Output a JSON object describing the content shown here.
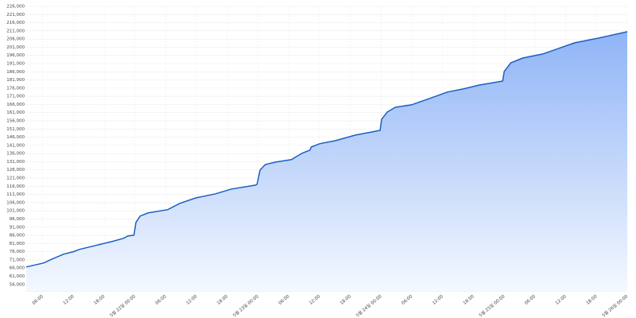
{
  "chart_data": {
    "type": "area",
    "x": [
      2.8,
      6.2,
      7.8,
      10.1,
      12,
      13.2,
      16.3,
      19.5,
      21.8,
      22.6,
      23.8,
      24.2,
      25,
      26.5,
      30.4,
      32.7,
      35.9,
      39.7,
      42.8,
      47.5,
      47.8,
      48.4,
      49.4,
      51.4,
      54.5,
      56.5,
      58.1,
      58.4,
      60,
      63.1,
      67,
      71.8,
      72.1,
      73.2,
      74.8,
      77.9,
      81,
      84.9,
      88,
      91.1,
      95.7,
      96,
      97.3,
      99.6,
      103.5,
      106.6,
      109.7,
      114.4,
      120
    ],
    "series": [
      {
        "color": "#1a5fc4",
        "fill_top": "#8fb4f6",
        "fill_bottom": "#f4f8ff",
        "values": [
          66700,
          69100,
          71500,
          74500,
          76000,
          77400,
          79800,
          82200,
          84200,
          85600,
          86100,
          93900,
          97800,
          99700,
          101700,
          105500,
          108900,
          111400,
          114300,
          116700,
          117200,
          125900,
          129300,
          130800,
          132300,
          136100,
          138100,
          140000,
          142000,
          143900,
          147300,
          150200,
          157000,
          161400,
          164300,
          165800,
          169200,
          173600,
          175500,
          177900,
          180300,
          186200,
          191500,
          194400,
          196900,
          200300,
          203700,
          206600,
          210500
        ]
      }
    ],
    "xlim": [
      2.8,
      120
    ],
    "xticks": [
      {
        "value": 6,
        "label": "06:00"
      },
      {
        "value": 12,
        "label": "12:00"
      },
      {
        "value": 18,
        "label": "18:00"
      },
      {
        "value": 24,
        "label": "5월 22일 00:00"
      },
      {
        "value": 30,
        "label": "06:00"
      },
      {
        "value": 36,
        "label": "12:00"
      },
      {
        "value": 42,
        "label": "18:00"
      },
      {
        "value": 48,
        "label": "5월 23일 00:00"
      },
      {
        "value": 54,
        "label": "06:00"
      },
      {
        "value": 60,
        "label": "12:00"
      },
      {
        "value": 66,
        "label": "18:00"
      },
      {
        "value": 72,
        "label": "5월 24일 00:00"
      },
      {
        "value": 78,
        "label": "06:00"
      },
      {
        "value": 84,
        "label": "12:00"
      },
      {
        "value": 90,
        "label": "18:00"
      },
      {
        "value": 96,
        "label": "5월 25일 00:00"
      },
      {
        "value": 102,
        "label": "06:00"
      },
      {
        "value": 108,
        "label": "12:00"
      },
      {
        "value": 114,
        "label": "18:00"
      },
      {
        "value": 120,
        "label": "5월 26일 00:00"
      }
    ],
    "ylim": [
      52000,
      226000
    ],
    "yticks": [
      {
        "value": 56000,
        "label": "56,000"
      },
      {
        "value": 61000,
        "label": "61,000"
      },
      {
        "value": 66000,
        "label": "66,000"
      },
      {
        "value": 71000,
        "label": "71,000"
      },
      {
        "value": 76000,
        "label": "76,000"
      },
      {
        "value": 81000,
        "label": "81,000"
      },
      {
        "value": 86000,
        "label": "86,000"
      },
      {
        "value": 91000,
        "label": "91,000"
      },
      {
        "value": 96000,
        "label": "96,000"
      },
      {
        "value": 101000,
        "label": "101,000"
      },
      {
        "value": 106000,
        "label": "106,000"
      },
      {
        "value": 111000,
        "label": "111,000"
      },
      {
        "value": 116000,
        "label": "116,000"
      },
      {
        "value": 121000,
        "label": "121,000"
      },
      {
        "value": 126000,
        "label": "126,000"
      },
      {
        "value": 131000,
        "label": "131,000"
      },
      {
        "value": 136000,
        "label": "136,000"
      },
      {
        "value": 141000,
        "label": "141,000"
      },
      {
        "value": 146000,
        "label": "146,000"
      },
      {
        "value": 151000,
        "label": "151,000"
      },
      {
        "value": 156000,
        "label": "156,000"
      },
      {
        "value": 161000,
        "label": "161,000"
      },
      {
        "value": 166000,
        "label": "166,000"
      },
      {
        "value": 171000,
        "label": "171,000"
      },
      {
        "value": 176000,
        "label": "176,000"
      },
      {
        "value": 181000,
        "label": "181,000"
      },
      {
        "value": 186000,
        "label": "186,000"
      },
      {
        "value": 191000,
        "label": "191,000"
      },
      {
        "value": 196000,
        "label": "196,000"
      },
      {
        "value": 201000,
        "label": "201,000"
      },
      {
        "value": 206000,
        "label": "206,000"
      },
      {
        "value": 211000,
        "label": "211,000"
      },
      {
        "value": 216000,
        "label": "216,000"
      },
      {
        "value": 221000,
        "label": "221,000"
      },
      {
        "value": 226000,
        "label": "226,000"
      }
    ],
    "grid": true
  }
}
